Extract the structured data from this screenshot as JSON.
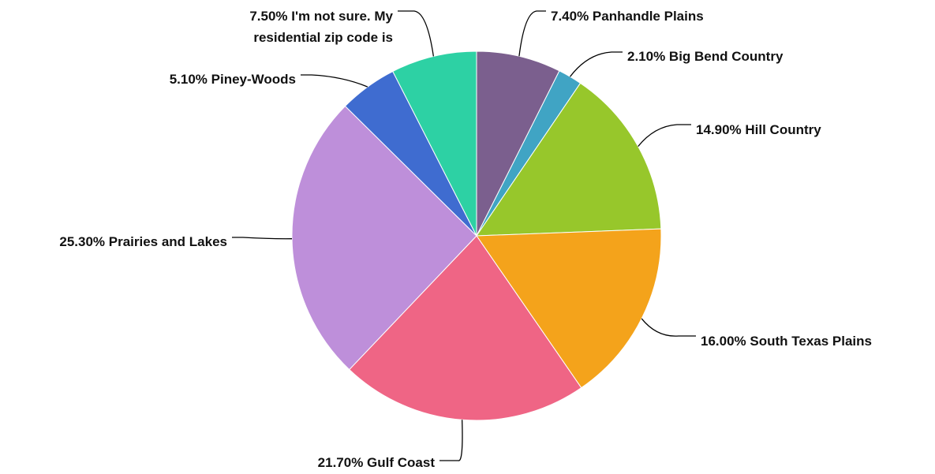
{
  "chart_data": {
    "type": "pie",
    "start": "top",
    "direction": "clockwise",
    "slices": [
      {
        "label": "Panhandle Plains",
        "pct_text": "7.40%",
        "value": 7.4,
        "color": "#7B5F8E"
      },
      {
        "label": "Big Bend Country",
        "pct_text": "2.10%",
        "value": 2.1,
        "color": "#40A4C4"
      },
      {
        "label": "Hill Country",
        "pct_text": "14.90%",
        "value": 14.9,
        "color": "#97C72B"
      },
      {
        "label": "South Texas Plains",
        "pct_text": "16.00%",
        "value": 16.0,
        "color": "#F4A31B"
      },
      {
        "label": "Gulf Coast",
        "pct_text": "21.70%",
        "value": 21.7,
        "color": "#EF6585"
      },
      {
        "label": "Prairies and Lakes",
        "pct_text": "25.30%",
        "value": 25.3,
        "color": "#BE8FDA"
      },
      {
        "label": "Piney-Woods",
        "pct_text": "5.10%",
        "value": 5.1,
        "color": "#3F6CD0"
      },
      {
        "label": "I'm not sure. My residential zip code is",
        "pct_text": "7.50%",
        "value": 7.5,
        "color": "#2DD1A4",
        "label_lines": [
          "7.50% I'm not sure. My",
          "residential zip code is"
        ]
      }
    ]
  }
}
